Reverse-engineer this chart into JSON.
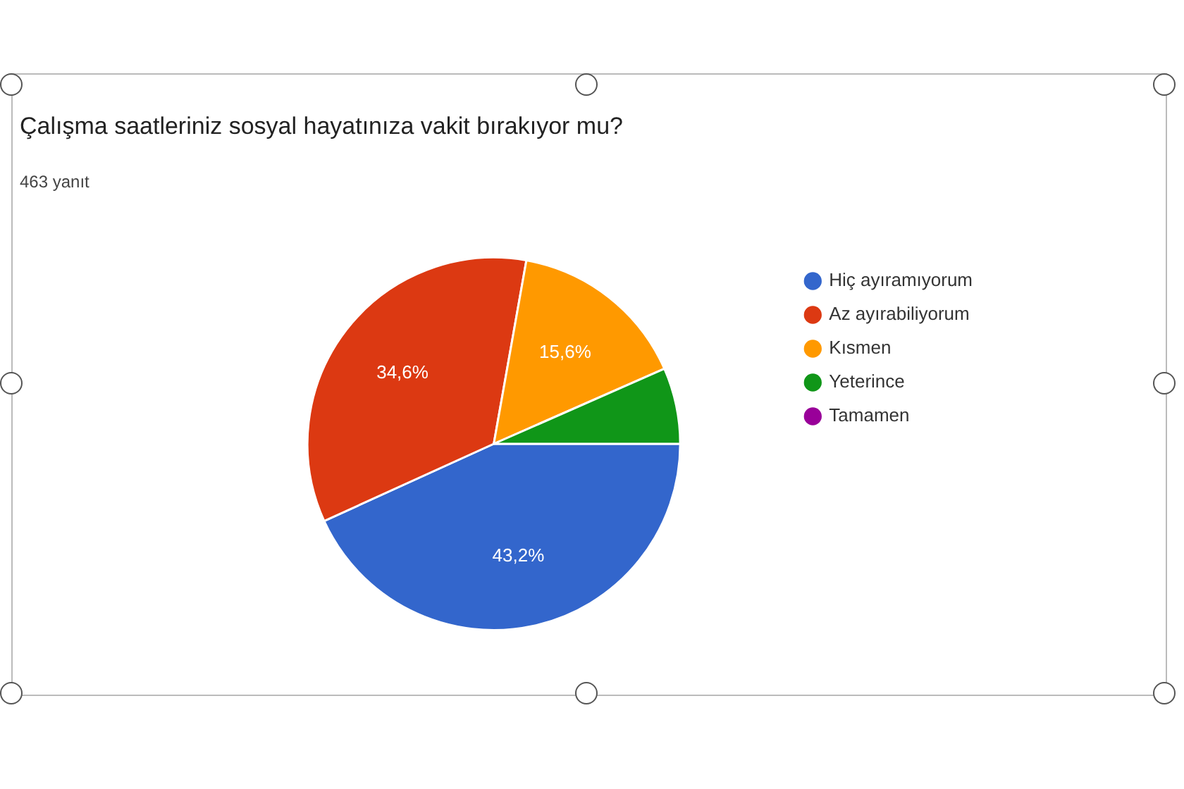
{
  "chart_data": {
    "type": "pie",
    "title": "Çalışma saatleriniz sosyal hayatınıza vakit bırakıyor mu?",
    "subtitle": "463 yanıt",
    "categories": [
      "Hiç ayıramıyorum",
      "Az ayırabiliyorum",
      "Kısmen",
      "Yeterince",
      "Tamamen"
    ],
    "values": [
      43.2,
      34.6,
      15.6,
      6.6,
      0
    ],
    "colors": [
      "#3366cc",
      "#dc3912",
      "#ff9900",
      "#109618",
      "#990099"
    ],
    "value_labels": [
      "43,2%",
      "34,6%",
      "15,6%",
      null,
      null
    ],
    "legend": "right"
  }
}
